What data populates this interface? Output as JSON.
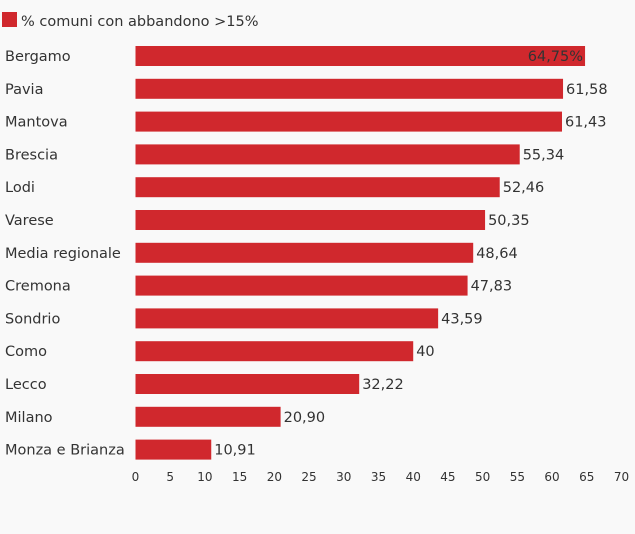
{
  "chart_data": {
    "type": "bar",
    "orientation": "horizontal",
    "legend": {
      "label": "% comuni con abbandono >15%",
      "color": "#d0282d",
      "placement": "top-left"
    },
    "categories": [
      "Bergamo",
      "Pavia",
      "Mantova",
      "Brescia",
      "Lodi",
      "Varese",
      "Media regionale",
      "Cremona",
      "Sondrio",
      "Como",
      "Lecco",
      "Milano",
      "Monza e Brianza"
    ],
    "values": [
      64.75,
      61.58,
      61.43,
      55.34,
      52.46,
      50.35,
      48.64,
      47.83,
      43.59,
      40,
      32.22,
      20.9,
      10.91
    ],
    "value_labels": [
      "64,75%",
      "61,58",
      "61,43",
      "55,34",
      "52,46",
      "50,35",
      "48,64",
      "47,83",
      "43,59",
      "40",
      "32,22",
      "20,90",
      "10,91"
    ],
    "xlim": [
      0,
      70
    ],
    "xticks": [
      "0",
      "5",
      "10",
      "15",
      "20",
      "25",
      "30",
      "35",
      "40",
      "45",
      "50",
      "55",
      "60",
      "65",
      "70"
    ],
    "grid": false,
    "bar_color": "#d0282d"
  }
}
